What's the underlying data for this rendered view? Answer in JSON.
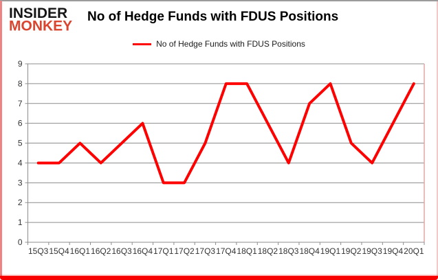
{
  "logo": {
    "line1": "INSIDER",
    "line2": "MONKEY"
  },
  "header": {
    "title": "No of Hedge Funds with FDUS Positions"
  },
  "legend": {
    "label": "No of Hedge Funds with FDUS Positions"
  },
  "colors": {
    "logo_black": "#161616",
    "logo_red": "#d9452f",
    "frame_bottom_red": "#f80000",
    "frame_left_pink": "#ee8383"
  },
  "chart_data": {
    "type": "line",
    "title": "No of Hedge Funds with FDUS Positions",
    "legend_entries": [
      "No of Hedge Funds with FDUS Positions"
    ],
    "legend_position": "top",
    "categories": [
      "15Q3",
      "15Q4",
      "16Q1",
      "16Q2",
      "16Q3",
      "16Q4",
      "17Q1",
      "17Q2",
      "17Q3",
      "17Q4",
      "18Q1",
      "18Q2",
      "18Q3",
      "18Q4",
      "19Q1",
      "19Q2",
      "19Q3",
      "19Q4",
      "20Q1"
    ],
    "values": [
      4,
      4,
      5,
      4,
      5,
      6,
      3,
      3,
      5,
      8,
      8,
      6,
      4,
      7,
      8,
      5,
      4,
      6,
      8
    ],
    "xlabel": "",
    "ylabel": "",
    "ylim": [
      0,
      9
    ],
    "ytick_step": 1,
    "grid": true,
    "line_color": "#ff0000",
    "line_width": 4,
    "grid_color": "#8c8c8c",
    "axis_color": "#8c8c8c",
    "plot_right_border_color": "#e3a6a6",
    "label_color": "#333333",
    "tick_font_size": 12
  }
}
